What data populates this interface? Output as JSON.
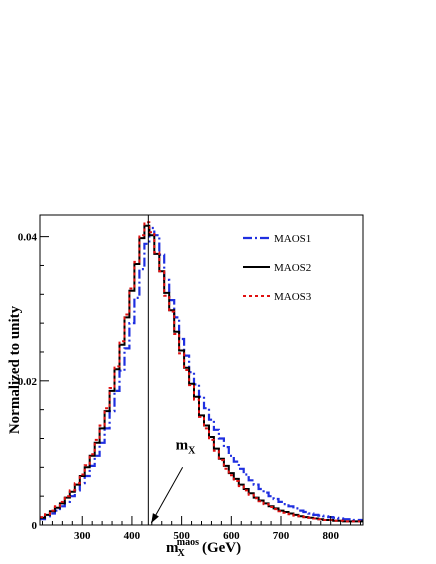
{
  "chart_data": {
    "type": "line",
    "ylabel": "Normalized to unity",
    "xlabel": {
      "base": "m",
      "sup": "maos",
      "sub": "X",
      "unit": "(GeV)"
    },
    "xlim": [
      215,
      865
    ],
    "ylim": [
      0,
      0.043
    ],
    "xticks": [
      300,
      400,
      500,
      600,
      700,
      800
    ],
    "yticks": [
      {
        "value": 0,
        "label": "0"
      },
      {
        "value": 0.02,
        "label": "0.02"
      },
      {
        "value": 0.04,
        "label": "0.04"
      }
    ],
    "annotation": {
      "base": "m",
      "sub": "X",
      "marker_x": 433,
      "text_x": 500,
      "text_y": 0.0105
    },
    "bin_edges": [
      215,
      225,
      235,
      245,
      255,
      265,
      275,
      285,
      295,
      305,
      315,
      325,
      335,
      345,
      355,
      365,
      375,
      385,
      395,
      405,
      415,
      425,
      435,
      445,
      455,
      465,
      475,
      485,
      495,
      505,
      515,
      525,
      535,
      545,
      555,
      565,
      575,
      585,
      595,
      605,
      615,
      625,
      635,
      645,
      655,
      665,
      675,
      685,
      695,
      705,
      715,
      725,
      735,
      745,
      755,
      765,
      775,
      785,
      795,
      805,
      815,
      825,
      835,
      845,
      855,
      865
    ],
    "series": [
      {
        "name": "MAOS1",
        "color": "#1f2fe0",
        "dash": "9,3,2,3",
        "width": 2.2,
        "values": [
          0.0008,
          0.0012,
          0.0016,
          0.002,
          0.0026,
          0.0032,
          0.004,
          0.0048,
          0.0058,
          0.0068,
          0.0082,
          0.0096,
          0.0114,
          0.0134,
          0.0158,
          0.0186,
          0.0214,
          0.0245,
          0.028,
          0.0315,
          0.0355,
          0.039,
          0.0412,
          0.0402,
          0.0375,
          0.034,
          0.0312,
          0.0288,
          0.0258,
          0.0235,
          0.0212,
          0.0195,
          0.0178,
          0.0162,
          0.0146,
          0.0132,
          0.012,
          0.0108,
          0.0096,
          0.0088,
          0.0078,
          0.007,
          0.0062,
          0.0056,
          0.005,
          0.0045,
          0.004,
          0.0036,
          0.0032,
          0.0029,
          0.0026,
          0.0023,
          0.002,
          0.0018,
          0.0016,
          0.0014,
          0.0013,
          0.0012,
          0.0011,
          0.001,
          0.0009,
          0.0008,
          0.0008,
          0.0007,
          0.0007
        ]
      },
      {
        "name": "MAOS2",
        "color": "#000000",
        "dash": "",
        "width": 2,
        "values": [
          0.001,
          0.0014,
          0.0019,
          0.0024,
          0.003,
          0.0038,
          0.0046,
          0.0056,
          0.0068,
          0.008,
          0.0096,
          0.0114,
          0.0134,
          0.0158,
          0.0186,
          0.0216,
          0.025,
          0.0288,
          0.0325,
          0.0362,
          0.0398,
          0.0415,
          0.0402,
          0.0376,
          0.0352,
          0.0322,
          0.0298,
          0.0268,
          0.0242,
          0.0218,
          0.0196,
          0.0178,
          0.0152,
          0.0138,
          0.0122,
          0.0106,
          0.0092,
          0.0082,
          0.0072,
          0.0064,
          0.0056,
          0.005,
          0.0044,
          0.0038,
          0.0034,
          0.003,
          0.0026,
          0.0023,
          0.002,
          0.0018,
          0.0016,
          0.0014,
          0.0012,
          0.0011,
          0.001,
          0.0009,
          0.0008,
          0.0007,
          0.0007,
          0.0006,
          0.0006,
          0.0005,
          0.0005,
          0.0005,
          0.0005
        ]
      },
      {
        "name": "MAOS3",
        "color": "#e01010",
        "dash": "3,3",
        "width": 2,
        "values": [
          0.0011,
          0.0015,
          0.002,
          0.0026,
          0.0032,
          0.004,
          0.0048,
          0.0058,
          0.007,
          0.0083,
          0.0098,
          0.0118,
          0.0138,
          0.0162,
          0.019,
          0.022,
          0.0255,
          0.0292,
          0.0328,
          0.0365,
          0.0402,
          0.042,
          0.0406,
          0.0378,
          0.0352,
          0.0318,
          0.0296,
          0.0265,
          0.0238,
          0.0215,
          0.0194,
          0.0174,
          0.015,
          0.0134,
          0.0118,
          0.0103,
          0.009,
          0.0078,
          0.0069,
          0.0061,
          0.0054,
          0.0048,
          0.0042,
          0.0037,
          0.0033,
          0.0029,
          0.0025,
          0.0022,
          0.0019,
          0.0017,
          0.0015,
          0.0013,
          0.0012,
          0.0011,
          0.001,
          0.0009,
          0.0008,
          0.0007,
          0.0007,
          0.0006,
          0.0006,
          0.0005,
          0.0005,
          0.0005,
          0.0005
        ]
      }
    ]
  }
}
